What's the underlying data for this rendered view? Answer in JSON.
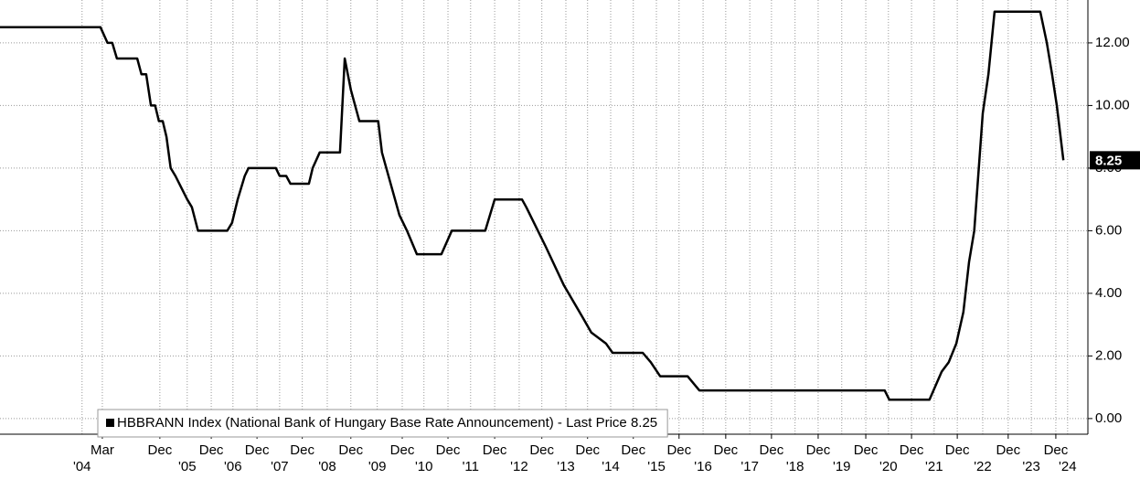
{
  "chart_data": {
    "type": "line",
    "series": [
      {
        "name": "HBBRANN Index (National Bank of Hungary Base Rate Announcement) - Last Price 8.25",
        "color": "#000000",
        "x": [
          2001.53,
          2003.66,
          2003.81,
          2003.91,
          2004.01,
          2004.44,
          2004.53,
          2004.63,
          2004.73,
          2004.82,
          2004.9,
          2004.98,
          2005.06,
          2005.15,
          2005.25,
          2005.5,
          2005.6,
          2005.73,
          2006.35,
          2006.45,
          2006.57,
          2006.72,
          2006.8,
          2007.38,
          2007.46,
          2007.6,
          2007.69,
          2008.08,
          2008.16,
          2008.31,
          2008.74,
          2008.84,
          2008.97,
          2009.15,
          2009.55,
          2009.63,
          2010.0,
          2010.16,
          2010.37,
          2010.89,
          2011.11,
          2011.82,
          2012.02,
          2012.6,
          2012.69,
          2013.1,
          2013.49,
          2013.88,
          2014.07,
          2014.38,
          2014.52,
          2015.16,
          2015.33,
          2015.53,
          2016.11,
          2016.36,
          2020.29,
          2020.39,
          2021.24,
          2021.5,
          2021.65,
          2021.81,
          2021.96,
          2022.08,
          2022.19,
          2022.37,
          2022.49,
          2022.62,
          2023.59,
          2023.73,
          2023.84,
          2023.94,
          2024.08
        ],
        "values": [
          12.5,
          12.5,
          12.0,
          12.0,
          11.5,
          11.5,
          11.0,
          11.0,
          10.0,
          10.0,
          9.5,
          9.5,
          9.0,
          8.0,
          7.75,
          7.0,
          6.75,
          6.0,
          6.0,
          6.25,
          7.0,
          7.75,
          8.0,
          8.0,
          7.75,
          7.75,
          7.5,
          7.5,
          8.0,
          8.5,
          8.5,
          11.5,
          10.5,
          9.5,
          9.5,
          8.5,
          6.5,
          6.0,
          5.25,
          5.25,
          6.0,
          6.0,
          7.0,
          7.0,
          6.75,
          5.5,
          4.25,
          3.25,
          2.75,
          2.4,
          2.1,
          2.1,
          1.8,
          1.35,
          1.35,
          0.9,
          0.9,
          0.6,
          0.6,
          1.5,
          1.8,
          2.4,
          3.4,
          5.0,
          6.0,
          9.75,
          11.0,
          13.0,
          13.0,
          12.0,
          11.0,
          10.0,
          8.25
        ]
      }
    ],
    "xlim": [
      2001.53,
      2024.6
    ],
    "ylim": [
      -0.5,
      13.37
    ],
    "yticks": [
      {
        "value": 0,
        "label": "0.00"
      },
      {
        "value": 2,
        "label": "2.00"
      },
      {
        "value": 4,
        "label": "4.00"
      },
      {
        "value": 6,
        "label": "6.00"
      },
      {
        "value": 8,
        "label": "8.00"
      },
      {
        "value": 10,
        "label": "10.00"
      },
      {
        "value": 12,
        "label": "12.00"
      }
    ],
    "xticks": [
      {
        "value": 2003.7,
        "label": "Mar"
      },
      {
        "value": 2004.92,
        "label": "Dec"
      },
      {
        "value": 2006.01,
        "label": "Dec"
      },
      {
        "value": 2006.98,
        "label": "Dec"
      },
      {
        "value": 2007.94,
        "label": "Dec"
      },
      {
        "value": 2008.97,
        "label": "Dec"
      },
      {
        "value": 2010.06,
        "label": "Dec"
      },
      {
        "value": 2011.03,
        "label": "Dec"
      },
      {
        "value": 2012.02,
        "label": "Dec"
      },
      {
        "value": 2013.02,
        "label": "Dec"
      },
      {
        "value": 2013.99,
        "label": "Dec"
      },
      {
        "value": 2014.96,
        "label": "Dec"
      },
      {
        "value": 2015.93,
        "label": "Dec"
      },
      {
        "value": 2016.92,
        "label": "Dec"
      },
      {
        "value": 2017.89,
        "label": "Dec"
      },
      {
        "value": 2018.88,
        "label": "Dec"
      },
      {
        "value": 2019.89,
        "label": "Dec"
      },
      {
        "value": 2020.86,
        "label": "Dec"
      },
      {
        "value": 2021.83,
        "label": "Dec"
      },
      {
        "value": 2022.91,
        "label": "Dec"
      },
      {
        "value": 2023.92,
        "label": "Dec"
      }
    ],
    "xticks_year": [
      {
        "value": 2003.27,
        "label": "'04"
      },
      {
        "value": 2005.5,
        "label": "'05"
      },
      {
        "value": 2006.47,
        "label": "'06"
      },
      {
        "value": 2007.46,
        "label": "'07"
      },
      {
        "value": 2008.47,
        "label": "'08"
      },
      {
        "value": 2009.53,
        "label": "'09"
      },
      {
        "value": 2010.52,
        "label": "'10"
      },
      {
        "value": 2011.51,
        "label": "'11"
      },
      {
        "value": 2012.54,
        "label": "'12"
      },
      {
        "value": 2013.53,
        "label": "'13"
      },
      {
        "value": 2014.48,
        "label": "'14"
      },
      {
        "value": 2015.45,
        "label": "'15"
      },
      {
        "value": 2016.44,
        "label": "'16"
      },
      {
        "value": 2017.43,
        "label": "'17"
      },
      {
        "value": 2018.39,
        "label": "'18"
      },
      {
        "value": 2019.38,
        "label": "'19"
      },
      {
        "value": 2020.37,
        "label": "'20"
      },
      {
        "value": 2021.34,
        "label": "'21"
      },
      {
        "value": 2022.37,
        "label": "'22"
      },
      {
        "value": 2023.4,
        "label": "'23"
      },
      {
        "value": 2024.17,
        "label": "'24"
      }
    ],
    "grid": true,
    "legend": "bottom-left"
  }
}
